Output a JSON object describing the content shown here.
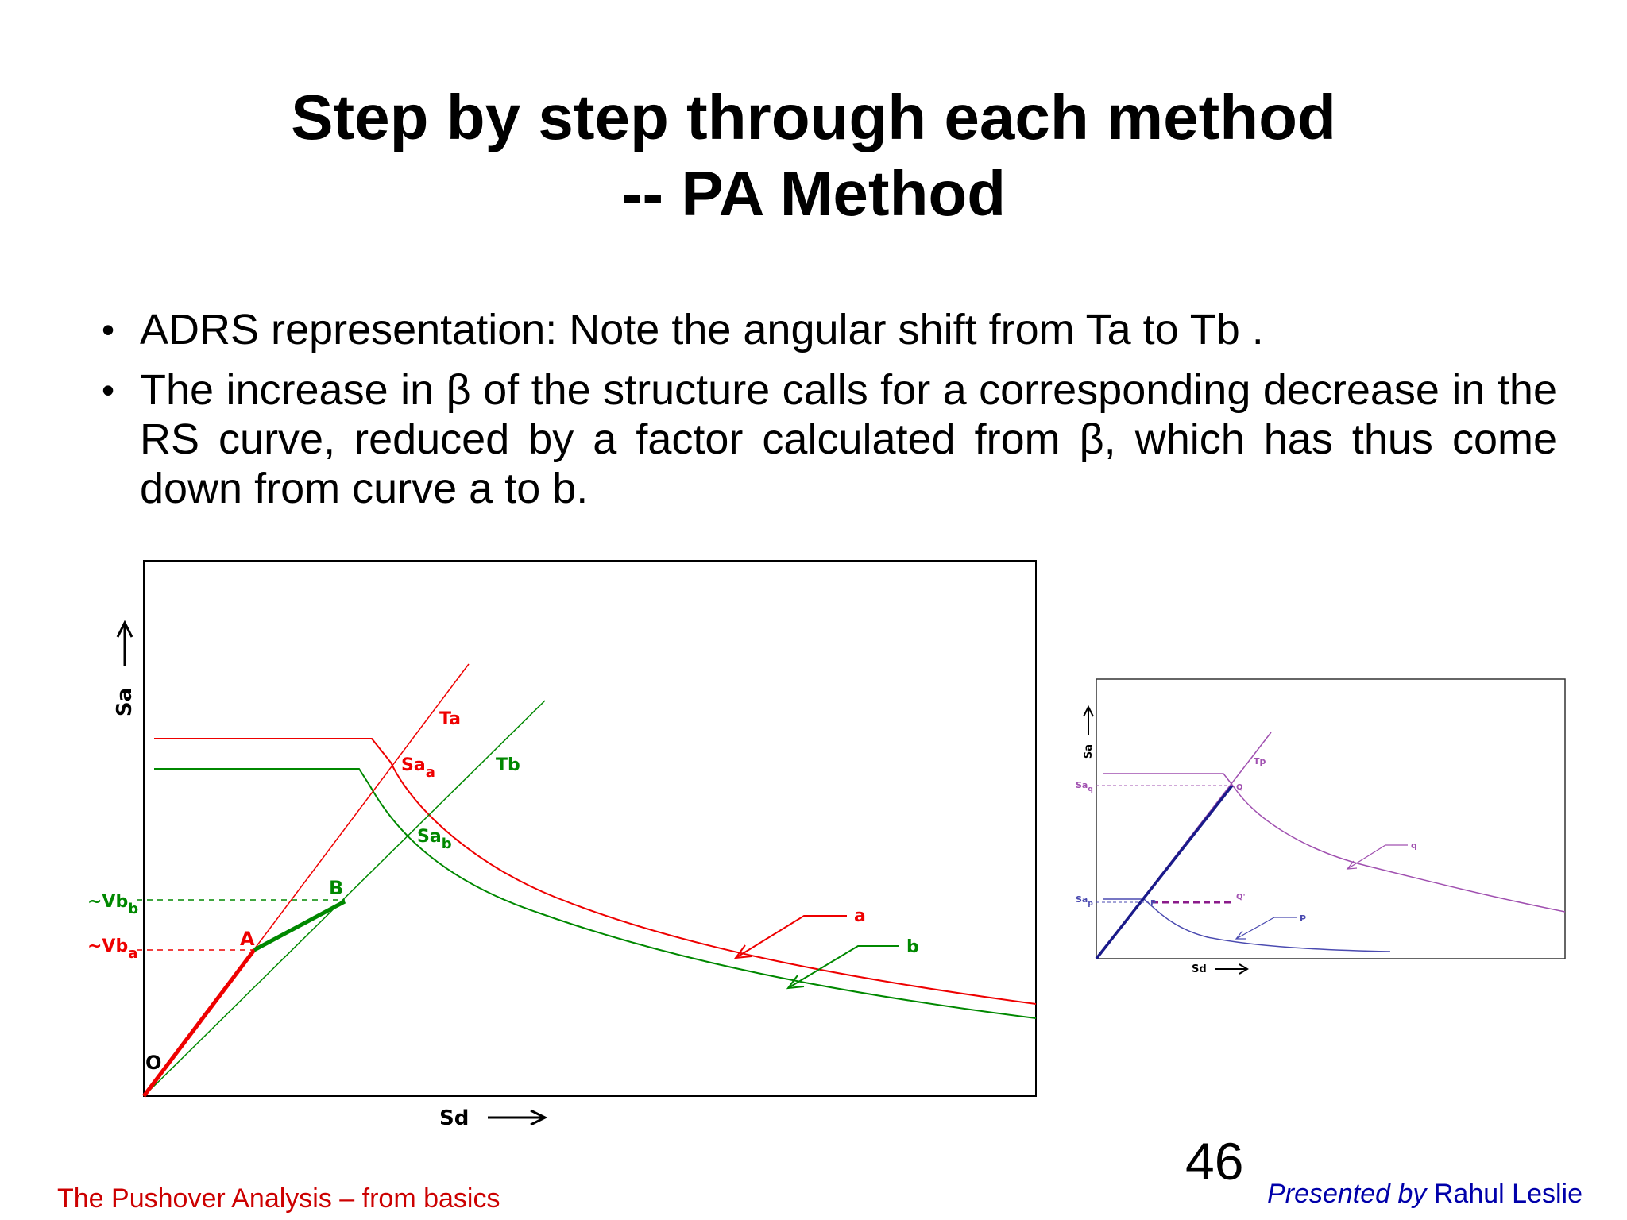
{
  "title": {
    "line1": "Step by step through each method",
    "line2": "-- PA Method"
  },
  "bullets": [
    "ADRS representation: Note the angular shift from Ta to Tb .",
    "The increase in β of the structure calls for a corresponding decrease in the RS curve, reduced by a factor calculated from β, which has thus come down from curve a to b."
  ],
  "main_diagram": {
    "y_axis_label": "Sa",
    "x_axis_label": "Sd",
    "line_labels": {
      "Ta": "Ta",
      "Tb": "Tb"
    },
    "intersection_labels": {
      "sa_a": "Sa",
      "sa_a_sub": "a",
      "sa_b": "Sa",
      "sa_b_sub": "b"
    },
    "point_labels": {
      "O": "O",
      "A": "A",
      "B": "B"
    },
    "base_shear_labels": {
      "vb_b": "~Vb",
      "vb_b_sub": "b",
      "vb_a": "~Vb",
      "vb_a_sub": "a"
    },
    "curve_labels": {
      "a": "a",
      "b": "b"
    },
    "colors": {
      "curve_a": "#ee0000",
      "curve_b": "#008800"
    }
  },
  "small_diagram": {
    "y_axis_label": "Sa",
    "x_axis_label": "Sd",
    "line_label": "Tp",
    "sa_q": "Sa",
    "sa_q_sub": "q",
    "sa_p": "Sa",
    "sa_p_sub": "p",
    "point_labels": {
      "Q": "Q",
      "Q_prime": "Q'",
      "P": "P"
    },
    "curve_labels": {
      "q": "q",
      "p": "P"
    },
    "colors": {
      "curve_q": "#a050b0",
      "curve_p": "#4a4ab0",
      "line": "#1a1a8a"
    }
  },
  "page_number": "46",
  "footer": {
    "left": "The Pushover Analysis – from basics",
    "presented_by": "Presented by",
    "author": "Rahul Leslie"
  }
}
